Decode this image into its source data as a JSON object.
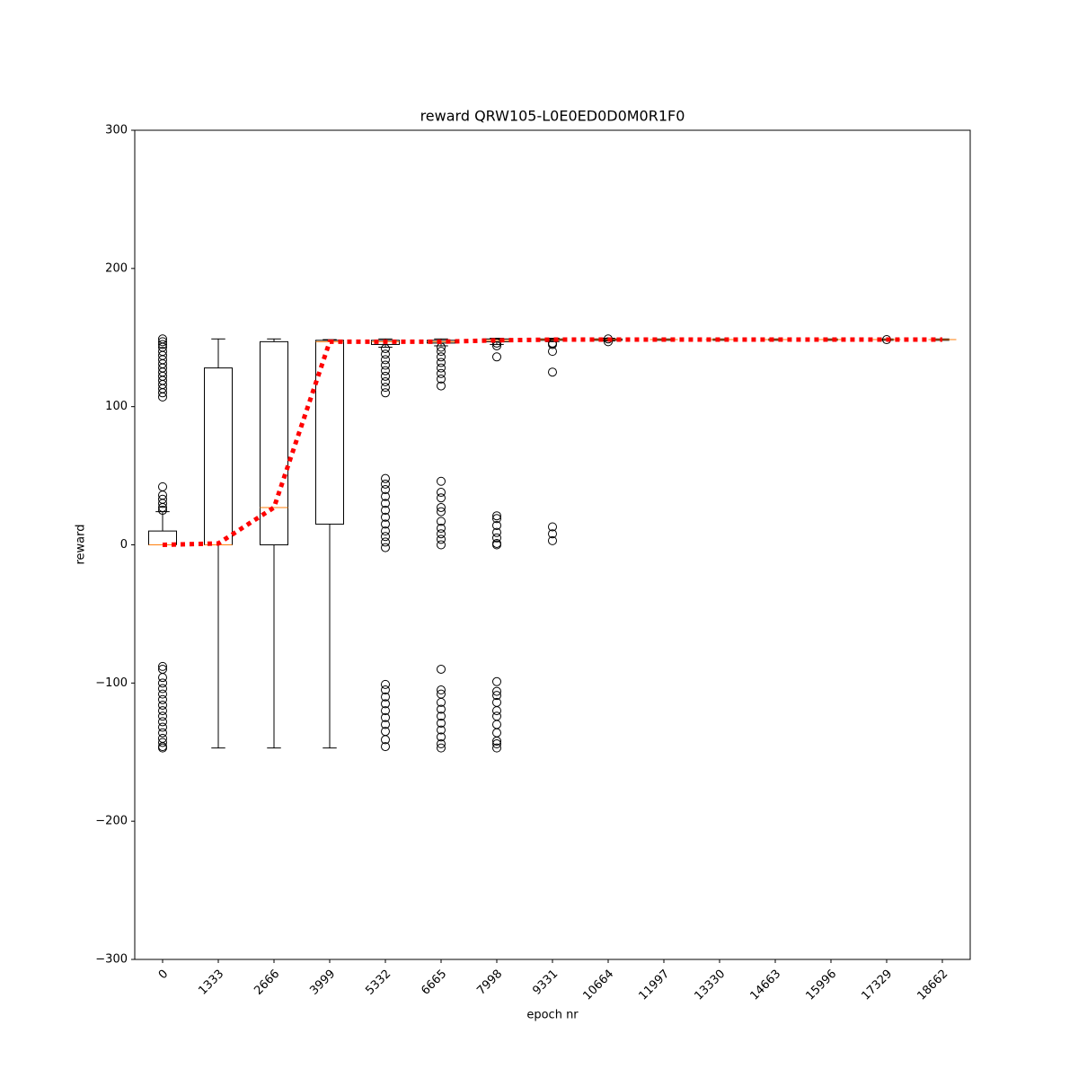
{
  "chart_data": {
    "type": "box",
    "title": "reward QRW105-L0E0ED0D0M0R1F0",
    "xlabel": "epoch nr",
    "ylabel": "reward",
    "categories": [
      "0",
      "1333",
      "2666",
      "3999",
      "5332",
      "6665",
      "7998",
      "9331",
      "10664",
      "11997",
      "13330",
      "14663",
      "15996",
      "17329",
      "18662"
    ],
    "box_color": "#000000",
    "median_color": "#ff7f0e",
    "mean_color": "#ff0000",
    "boxes": [
      {
        "min": 0,
        "q1": 0,
        "median": 0,
        "q3": 10,
        "max": 24,
        "outliers": [
          149,
          147,
          145,
          143,
          140,
          137,
          134,
          131,
          128,
          125,
          122,
          119,
          116,
          113,
          110,
          107,
          42,
          36,
          33,
          30,
          27,
          25,
          -88,
          -90,
          -96,
          -100,
          -104,
          -108,
          -112,
          -116,
          -120,
          -124,
          -128,
          -132,
          -136,
          -140,
          -143,
          -146,
          -147
        ]
      },
      {
        "min": -147,
        "q1": 0,
        "median": 0,
        "q3": 128,
        "max": 149,
        "outliers": []
      },
      {
        "min": -147,
        "q1": 0,
        "median": 27,
        "q3": 147,
        "max": 149,
        "outliers": []
      },
      {
        "min": -147,
        "q1": 15,
        "median": 147,
        "q3": 148,
        "max": 148.5,
        "outliers": []
      },
      {
        "min": 143,
        "q1": 145,
        "median": 147,
        "q3": 148,
        "max": 149,
        "outliers": [
          142,
          138,
          134,
          130,
          126,
          122,
          118,
          114,
          110,
          48,
          44,
          40,
          35,
          30,
          25,
          20,
          15,
          10,
          6,
          2,
          -2,
          -101,
          -105,
          -110,
          -115,
          -120,
          -125,
          -130,
          -135,
          -141,
          -146
        ]
      },
      {
        "min": 144,
        "q1": 146,
        "median": 147,
        "q3": 148,
        "max": 149,
        "outliers": [
          143,
          140,
          136,
          132,
          128,
          124,
          120,
          115,
          46,
          38,
          34,
          27,
          24,
          17,
          12,
          8,
          4,
          0,
          -90,
          -105,
          -108,
          -114,
          -119,
          -124,
          -129,
          -134,
          -139,
          -144,
          -147
        ]
      },
      {
        "min": 145,
        "q1": 147,
        "median": 148,
        "q3": 149,
        "max": 149.5,
        "outliers": [
          146,
          144,
          136,
          21,
          19,
          14,
          9,
          5,
          1,
          0,
          -99,
          -106,
          -109,
          -114,
          -120,
          -124,
          -130,
          -136,
          -142,
          -144,
          -147
        ]
      },
      {
        "min": 147,
        "q1": 148,
        "median": 148.5,
        "q3": 149,
        "max": 149.5,
        "outliers": [
          146,
          145,
          140,
          125,
          13,
          8,
          3
        ]
      },
      {
        "min": 147.5,
        "q1": 148,
        "median": 148.5,
        "q3": 149,
        "max": 149.5,
        "outliers": [
          147,
          149
        ]
      },
      {
        "min": 148,
        "q1": 148.5,
        "median": 148.5,
        "q3": 148.5,
        "max": 149,
        "outliers": []
      },
      {
        "min": 148,
        "q1": 148.5,
        "median": 148.5,
        "q3": 148.5,
        "max": 149,
        "outliers": []
      },
      {
        "min": 148,
        "q1": 148.5,
        "median": 148.5,
        "q3": 148.5,
        "max": 149,
        "outliers": []
      },
      {
        "min": 148,
        "q1": 148.5,
        "median": 148.5,
        "q3": 148.5,
        "max": 149,
        "outliers": []
      },
      {
        "min": 148,
        "q1": 148.5,
        "median": 148.5,
        "q3": 148.5,
        "max": 149,
        "outliers": [
          148.5
        ]
      },
      {
        "min": 148,
        "q1": 148.5,
        "median": 148.5,
        "q3": 148.5,
        "max": 149,
        "outliers": []
      }
    ],
    "means": [
      0,
      1,
      27,
      147,
      147,
      147,
      148,
      148.5,
      148.5,
      148.5,
      148.5,
      148.5,
      148.5,
      148.5,
      148.5
    ],
    "ylim": [
      -300,
      300
    ],
    "yticks": [
      {
        "value": -300,
        "label": "−300"
      },
      {
        "value": -200,
        "label": "−200"
      },
      {
        "value": -100,
        "label": "−100"
      },
      0,
      100,
      200,
      300
    ],
    "grid": false
  }
}
